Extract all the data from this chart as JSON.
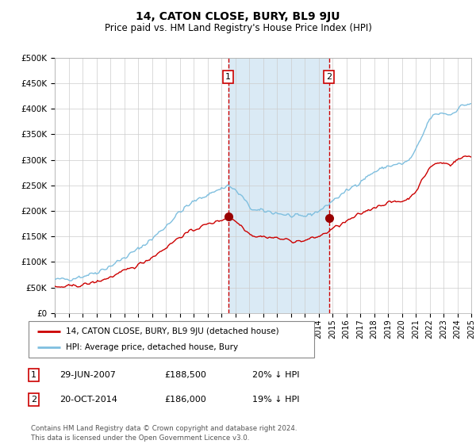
{
  "title": "14, CATON CLOSE, BURY, BL9 9JU",
  "subtitle": "Price paid vs. HM Land Registry's House Price Index (HPI)",
  "footer": "Contains HM Land Registry data © Crown copyright and database right 2024.\nThis data is licensed under the Open Government Licence v3.0.",
  "legend_line1": "14, CATON CLOSE, BURY, BL9 9JU (detached house)",
  "legend_line2": "HPI: Average price, detached house, Bury",
  "transaction1_label": "1",
  "transaction1_date": "29-JUN-2007",
  "transaction1_price": "£188,500",
  "transaction1_hpi": "20% ↓ HPI",
  "transaction2_label": "2",
  "transaction2_date": "20-OCT-2014",
  "transaction2_price": "£186,000",
  "transaction2_hpi": "19% ↓ HPI",
  "hpi_color": "#7fbfdf",
  "price_color": "#cc0000",
  "marker_color": "#990000",
  "highlight_color": "#daeaf5",
  "vline_color": "#cc0000",
  "ylim_min": 0,
  "ylim_max": 500000,
  "yticks": [
    0,
    50000,
    100000,
    150000,
    200000,
    250000,
    300000,
    350000,
    400000,
    450000,
    500000
  ],
  "ytick_labels": [
    "£0",
    "£50K",
    "£100K",
    "£150K",
    "£200K",
    "£250K",
    "£300K",
    "£350K",
    "£400K",
    "£450K",
    "£500K"
  ],
  "transaction1_x": 2007.5,
  "transaction1_y": 188500,
  "transaction2_x": 2014.75,
  "transaction2_y": 186000,
  "vline1_x": 2007.5,
  "vline2_x": 2014.75,
  "xmin": 1995,
  "xmax": 2025
}
